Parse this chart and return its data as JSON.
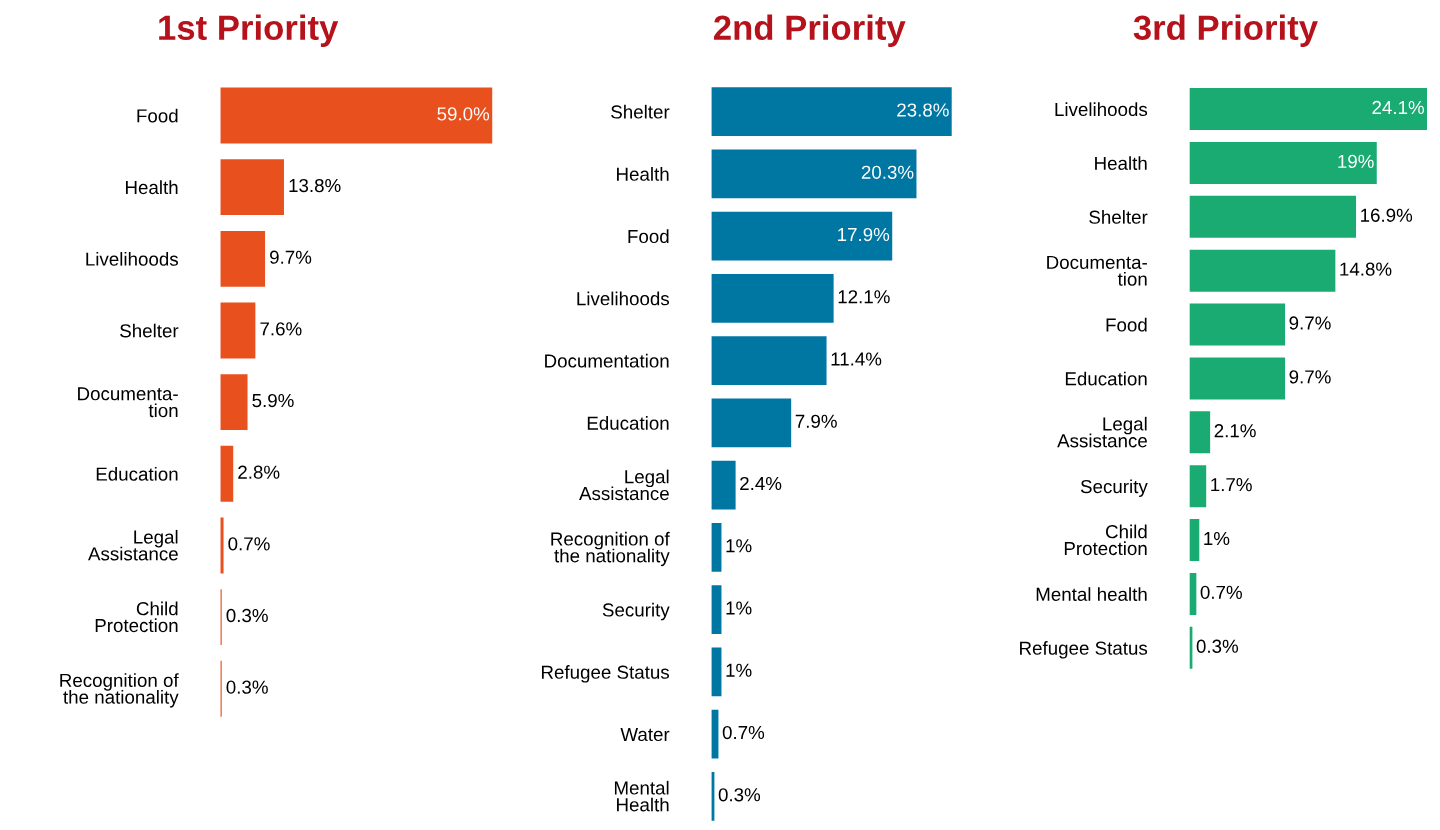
{
  "chart_data": [
    {
      "type": "bar",
      "orientation": "horizontal",
      "title": "1st Priority",
      "tick_labels": "y",
      "grid": false,
      "legend": false,
      "categories": [
        "Food",
        "Health",
        "Livelihoods",
        "Shelter",
        "Documenta-\ntion",
        "Education",
        "Legal\nAssistance",
        "Child\nProtection",
        "Recognition of\nthe nationality"
      ],
      "values": [
        59.0,
        13.8,
        9.7,
        7.6,
        5.9,
        2.8,
        0.7,
        0.3,
        0.3
      ],
      "color": "#e8501e",
      "value_labels": [
        "59.0%",
        "13.8%",
        "9.7%",
        "7.6%",
        "5.9%",
        "2.8%",
        "0.7%",
        "0.3%",
        "0.3%"
      ]
    },
    {
      "type": "bar",
      "orientation": "horizontal",
      "title": "2nd Priority",
      "tick_labels": "y",
      "grid": false,
      "legend": false,
      "categories": [
        "Shelter",
        "Health",
        "Food",
        "Livelihoods",
        "Documentation",
        "Education",
        "Legal\nAssistance",
        "Recognition of\nthe nationality",
        "Security",
        "Refugee Status",
        "Water",
        "Mental\nHealth"
      ],
      "values": [
        23.8,
        20.3,
        17.9,
        12.1,
        11.4,
        7.9,
        2.4,
        1,
        1,
        1,
        0.7,
        0.3
      ],
      "color": "#0077a3",
      "value_labels": [
        "23.8%",
        "20.3%",
        "17.9%",
        "12.1%",
        "11.4%",
        "7.9%",
        "2.4%",
        "1%",
        "1%",
        "1%",
        "0.7%",
        "0.3%"
      ]
    },
    {
      "type": "bar",
      "orientation": "horizontal",
      "title": "3rd Priority",
      "tick_labels": "y",
      "grid": false,
      "legend": false,
      "categories": [
        "Livelihoods",
        "Health",
        "Shelter",
        "Documenta-\ntion",
        "Food",
        "Education",
        "Legal\nAssistance",
        "Security",
        "Child\nProtection",
        "Mental health",
        "Refugee Status"
      ],
      "values": [
        24.1,
        19,
        16.9,
        14.8,
        9.7,
        9.7,
        2.1,
        1.7,
        1,
        0.7,
        0.3
      ],
      "color": "#1aab72",
      "value_labels": [
        "24.1%",
        "19%",
        "16.9%",
        "14.8%",
        "9.7%",
        "9.7%",
        "2.1%",
        "1.7%",
        "1%",
        "0.7%",
        "0.3%"
      ]
    }
  ]
}
